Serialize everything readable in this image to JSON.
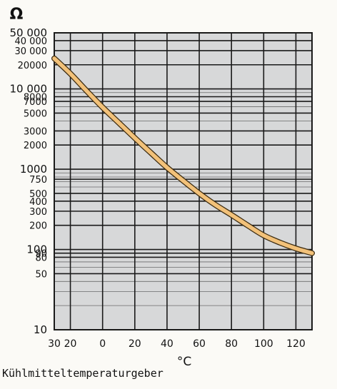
{
  "chart_data": {
    "type": "line",
    "title": "Kühlmitteltemperaturgeber",
    "ylabel": "Ω",
    "xlabel": "°C",
    "yscale": "log",
    "ylim": [
      10,
      50000
    ],
    "xlim": [
      -30,
      130
    ],
    "grid": true,
    "y_ticks": [
      {
        "value": 50000,
        "label": "50 000"
      },
      {
        "value": 40000,
        "label": "40 000"
      },
      {
        "value": 30000,
        "label": "30 000"
      },
      {
        "value": 20000,
        "label": "20000"
      },
      {
        "value": 10000,
        "label": "10 000"
      },
      {
        "value": 8000,
        "label": "8000"
      },
      {
        "value": 7000,
        "label": "7000"
      },
      {
        "value": 5000,
        "label": "5000"
      },
      {
        "value": 3000,
        "label": "3000"
      },
      {
        "value": 2000,
        "label": "2000"
      },
      {
        "value": 1000,
        "label": "1000"
      },
      {
        "value": 750,
        "label": "750"
      },
      {
        "value": 500,
        "label": "500"
      },
      {
        "value": 400,
        "label": "400"
      },
      {
        "value": 300,
        "label": "300"
      },
      {
        "value": 200,
        "label": "200"
      },
      {
        "value": 100,
        "label": "100"
      },
      {
        "value": 90,
        "label": "90"
      },
      {
        "value": 80,
        "label": "80"
      },
      {
        "value": 50,
        "label": "50"
      },
      {
        "value": 10,
        "label": "10"
      }
    ],
    "x_ticks": [
      {
        "value": -30,
        "label": "30"
      },
      {
        "value": -20,
        "label": "20"
      },
      {
        "value": 0,
        "label": "0"
      },
      {
        "value": 20,
        "label": "20"
      },
      {
        "value": 40,
        "label": "40"
      },
      {
        "value": 60,
        "label": "60"
      },
      {
        "value": 80,
        "label": "80"
      },
      {
        "value": 100,
        "label": "100"
      },
      {
        "value": 120,
        "label": "120"
      }
    ],
    "x_grid": [
      -30,
      -20,
      0,
      20,
      40,
      60,
      80,
      100,
      120,
      130
    ],
    "series": [
      {
        "x": [
          -30,
          -20,
          -10,
          0,
          10,
          20,
          30,
          40,
          50,
          60,
          70,
          80,
          90,
          100,
          110,
          120,
          130
        ],
        "y": [
          24000,
          15500,
          9500,
          5900,
          3800,
          2450,
          1600,
          1050,
          720,
          500,
          360,
          270,
          200,
          150,
          122,
          103,
          90
        ]
      }
    ],
    "colors": {
      "background": "#d7d8d9",
      "grid": "#1a1a1a",
      "curve": "#f2c179",
      "curve_edge": "#3a2a10"
    }
  }
}
